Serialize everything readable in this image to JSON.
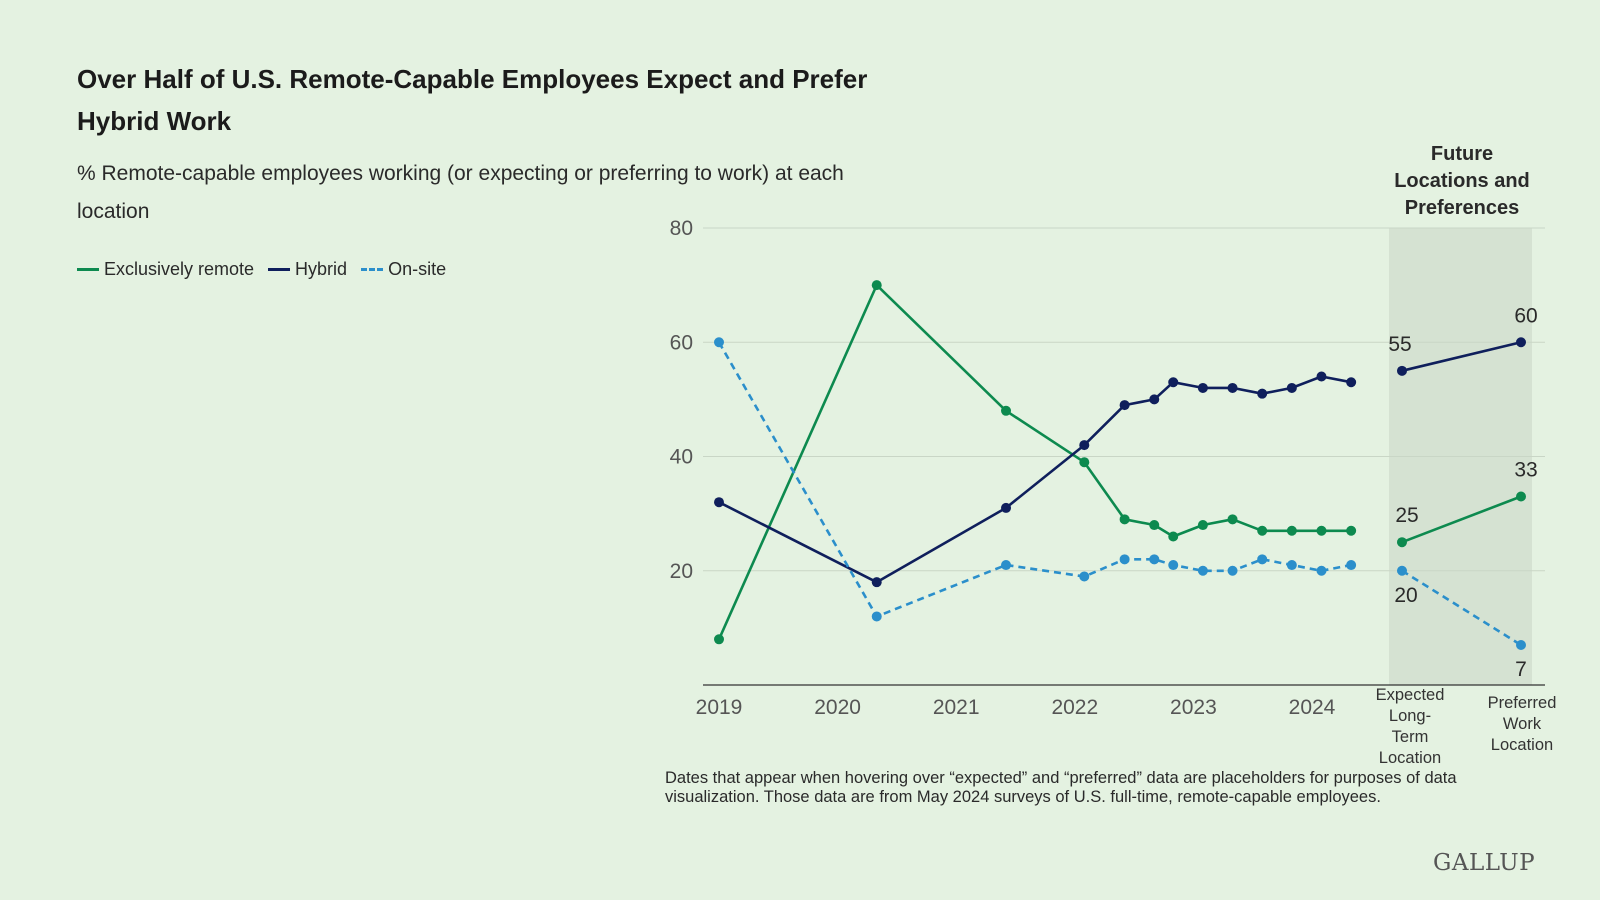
{
  "title": "Over Half of U.S. Remote-Capable Employees Expect and Prefer Hybrid Work",
  "subtitle": "% Remote-capable employees working (or expecting or preferring to work) at each location",
  "note": "Dates that appear when hovering over “expected” and “preferred” data are placeholders for purposes of data visualization. Those data are from May 2024 surveys of U.S. full-time, remote-capable employees.",
  "logo": "GALLUP",
  "colors": {
    "exclusively_remote": "#0d8a4f",
    "hybrid": "#0f1f5c",
    "on_site": "#2b8fcb",
    "future_panel": "#d5e2d2",
    "grid": "#c9d6c6",
    "axis": "#333333",
    "tick_text": "#555555"
  },
  "chart_data": {
    "type": "line",
    "title": "Over Half of U.S. Remote-Capable Employees Expect and Prefer Hybrid Work",
    "ylim": [
      0,
      80
    ],
    "yticks": [
      20,
      40,
      60,
      80
    ],
    "xlim": [
      2019,
      2024.6
    ],
    "xticks": [
      2019,
      2020,
      2021,
      2022,
      2023,
      2024
    ],
    "legend_position": "top-left",
    "grid": true,
    "series": [
      {
        "name": "Exclusively remote",
        "style": "solid",
        "points": [
          [
            2019.0,
            8
          ],
          [
            2020.33,
            70
          ],
          [
            2021.42,
            48
          ],
          [
            2022.08,
            39
          ],
          [
            2022.42,
            29
          ],
          [
            2022.67,
            28
          ],
          [
            2022.83,
            26
          ],
          [
            2023.08,
            28
          ],
          [
            2023.33,
            29
          ],
          [
            2023.58,
            27
          ],
          [
            2023.83,
            27
          ],
          [
            2024.08,
            27
          ],
          [
            2024.33,
            27
          ]
        ]
      },
      {
        "name": "Hybrid",
        "style": "solid",
        "points": [
          [
            2019.0,
            32
          ],
          [
            2020.33,
            18
          ],
          [
            2021.42,
            31
          ],
          [
            2022.08,
            42
          ],
          [
            2022.42,
            49
          ],
          [
            2022.67,
            50
          ],
          [
            2022.83,
            53
          ],
          [
            2023.08,
            52
          ],
          [
            2023.33,
            52
          ],
          [
            2023.58,
            51
          ],
          [
            2023.83,
            52
          ],
          [
            2024.08,
            54
          ],
          [
            2024.33,
            53
          ]
        ]
      },
      {
        "name": "On-site",
        "style": "dashed",
        "points": [
          [
            2019.0,
            60
          ],
          [
            2020.33,
            12
          ],
          [
            2021.42,
            21
          ],
          [
            2022.08,
            19
          ],
          [
            2022.42,
            22
          ],
          [
            2022.67,
            22
          ],
          [
            2022.83,
            21
          ],
          [
            2023.08,
            20
          ],
          [
            2023.33,
            20
          ],
          [
            2023.58,
            22
          ],
          [
            2023.83,
            21
          ],
          [
            2024.08,
            20
          ],
          [
            2024.33,
            21
          ]
        ]
      }
    ],
    "future": {
      "header": [
        "Future",
        "Locations and",
        "Preferences"
      ],
      "categories": [
        [
          "Expected",
          "Long-",
          "Term",
          "Location"
        ],
        [
          "Preferred",
          "Work",
          "Location"
        ]
      ],
      "series": [
        {
          "name": "Hybrid",
          "values": [
            55,
            60
          ]
        },
        {
          "name": "Exclusively remote",
          "values": [
            25,
            33
          ]
        },
        {
          "name": "On-site",
          "values": [
            20,
            7
          ]
        }
      ]
    }
  }
}
